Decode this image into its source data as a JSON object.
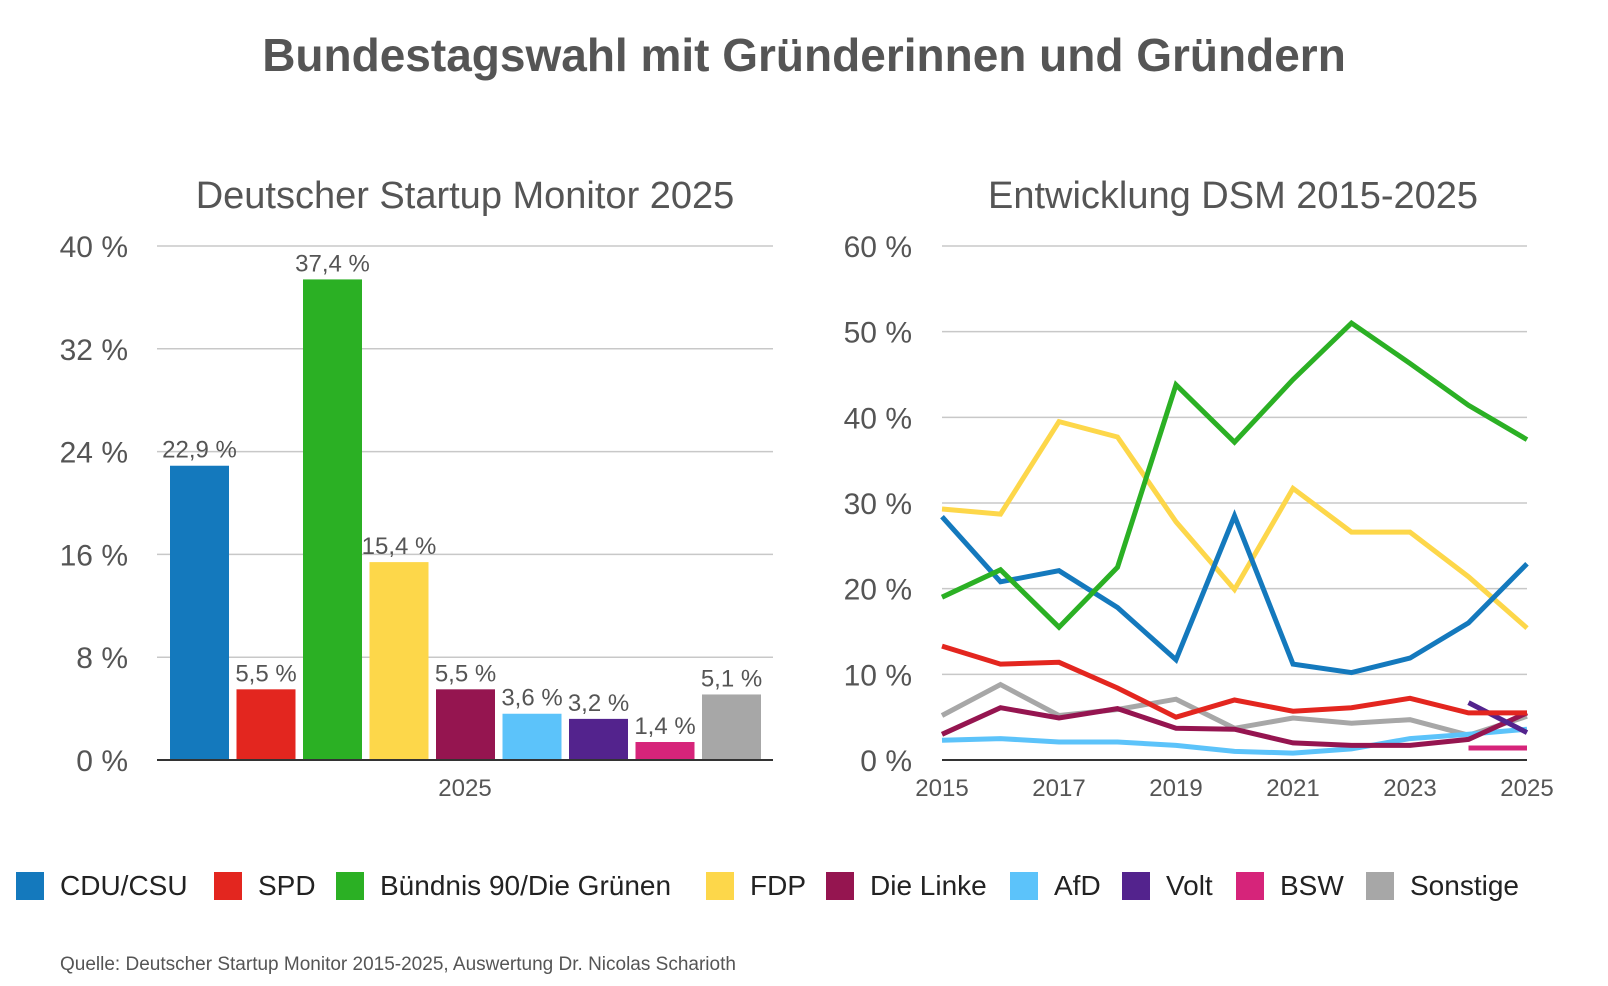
{
  "title": "Bundestagswahl mit Gründerinnen und Gründern",
  "colors": {
    "CDU/CSU": "#1479bd",
    "SPD": "#e3261f",
    "Bündnis 90/Die Grünen": "#2bb024",
    "FDP": "#fdd74a",
    "Die Linke": "#951550",
    "AfD": "#5cc3fa",
    "Volt": "#53238d",
    "BSW": "#d6247a",
    "Sonstige": "#a7a7a7"
  },
  "chart_data": [
    {
      "type": "bar",
      "title": "Deutscher Startup Monitor 2025",
      "categories": [
        "CDU/CSU",
        "SPD",
        "Bündnis 90/Die Grünen",
        "FDP",
        "Die Linke",
        "AfD",
        "Volt",
        "BSW",
        "Sonstige"
      ],
      "values": [
        22.9,
        5.5,
        37.4,
        15.4,
        5.5,
        3.6,
        3.2,
        1.4,
        5.1
      ],
      "value_labels": [
        "22,9 %",
        "5,5 %",
        "37,4 %",
        "15,4 %",
        "5,5 %",
        "3,6 %",
        "3,2 %",
        "1,4 %",
        "5,1 %"
      ],
      "xlabel": "2025",
      "ylim": [
        0,
        40
      ],
      "yticks": [
        0,
        8,
        16,
        24,
        32,
        40
      ],
      "ytick_labels": [
        "0 %",
        "8 %",
        "16 %",
        "24 %",
        "32 %",
        "40 %"
      ],
      "grid": true
    },
    {
      "type": "line",
      "title": "Entwicklung DSM 2015-2025",
      "xlim": [
        2015,
        2025
      ],
      "ylim": [
        0,
        60
      ],
      "xticks": [
        2015,
        2017,
        2019,
        2021,
        2023,
        2025
      ],
      "xtick_labels": [
        "2015",
        "2017",
        "2019",
        "2021",
        "2023",
        "2025"
      ],
      "yticks": [
        0,
        10,
        20,
        30,
        40,
        50,
        60
      ],
      "ytick_labels": [
        "0 %",
        "10 %",
        "20 %",
        "30 %",
        "40 %",
        "50 %",
        "60 %"
      ],
      "grid": true,
      "series": [
        {
          "name": "Sonstige",
          "x": [
            2015,
            2016,
            2017,
            2018,
            2019,
            2020,
            2021,
            2022,
            2023,
            2024,
            2025
          ],
          "values": [
            5.2,
            8.8,
            5.2,
            5.9,
            7.1,
            3.7,
            4.9,
            4.3,
            4.7,
            2.9,
            5.1
          ]
        },
        {
          "name": "AfD",
          "x": [
            2015,
            2016,
            2017,
            2018,
            2019,
            2020,
            2021,
            2022,
            2023,
            2024,
            2025
          ],
          "values": [
            2.3,
            2.5,
            2.1,
            2.1,
            1.7,
            1.0,
            0.8,
            1.3,
            2.5,
            3.0,
            3.6
          ]
        },
        {
          "name": "Die Linke",
          "x": [
            2015,
            2016,
            2017,
            2018,
            2019,
            2020,
            2021,
            2022,
            2023,
            2024,
            2025
          ],
          "values": [
            3.0,
            6.1,
            4.9,
            6.0,
            3.7,
            3.6,
            2.0,
            1.7,
            1.7,
            2.4,
            5.5
          ]
        },
        {
          "name": "Volt",
          "x": [
            2024,
            2025
          ],
          "values": [
            6.7,
            3.2
          ]
        },
        {
          "name": "BSW",
          "x": [
            2024,
            2025
          ],
          "values": [
            1.4,
            1.4
          ]
        },
        {
          "name": "SPD",
          "x": [
            2015,
            2016,
            2017,
            2018,
            2019,
            2020,
            2021,
            2022,
            2023,
            2024,
            2025
          ],
          "values": [
            13.3,
            11.2,
            11.4,
            8.4,
            5.0,
            7.0,
            5.7,
            6.1,
            7.2,
            5.5,
            5.5
          ]
        },
        {
          "name": "FDP",
          "x": [
            2015,
            2016,
            2017,
            2018,
            2019,
            2020,
            2021,
            2022,
            2023,
            2024,
            2025
          ],
          "values": [
            29.3,
            28.7,
            39.5,
            37.7,
            27.8,
            19.9,
            31.7,
            26.6,
            26.6,
            21.4,
            15.4
          ]
        },
        {
          "name": "CDU/CSU",
          "x": [
            2015,
            2016,
            2017,
            2018,
            2019,
            2020,
            2021,
            2022,
            2023,
            2024,
            2025
          ],
          "values": [
            28.4,
            20.8,
            22.1,
            17.8,
            11.7,
            28.5,
            11.2,
            10.2,
            11.9,
            16.0,
            22.9
          ]
        },
        {
          "name": "Bündnis 90/Die Grünen",
          "x": [
            2015,
            2016,
            2017,
            2018,
            2019,
            2020,
            2021,
            2022,
            2023,
            2024,
            2025
          ],
          "values": [
            19.0,
            22.2,
            15.5,
            22.5,
            43.8,
            37.1,
            44.4,
            51.0,
            46.3,
            41.4,
            37.4
          ]
        }
      ]
    }
  ],
  "legend": [
    "CDU/CSU",
    "SPD",
    "Bündnis 90/Die Grünen",
    "FDP",
    "Die Linke",
    "AfD",
    "Volt",
    "BSW",
    "Sonstige"
  ],
  "source": "Quelle: Deutscher Startup Monitor 2015-2025, Auswertung Dr. Nicolas Scharioth"
}
